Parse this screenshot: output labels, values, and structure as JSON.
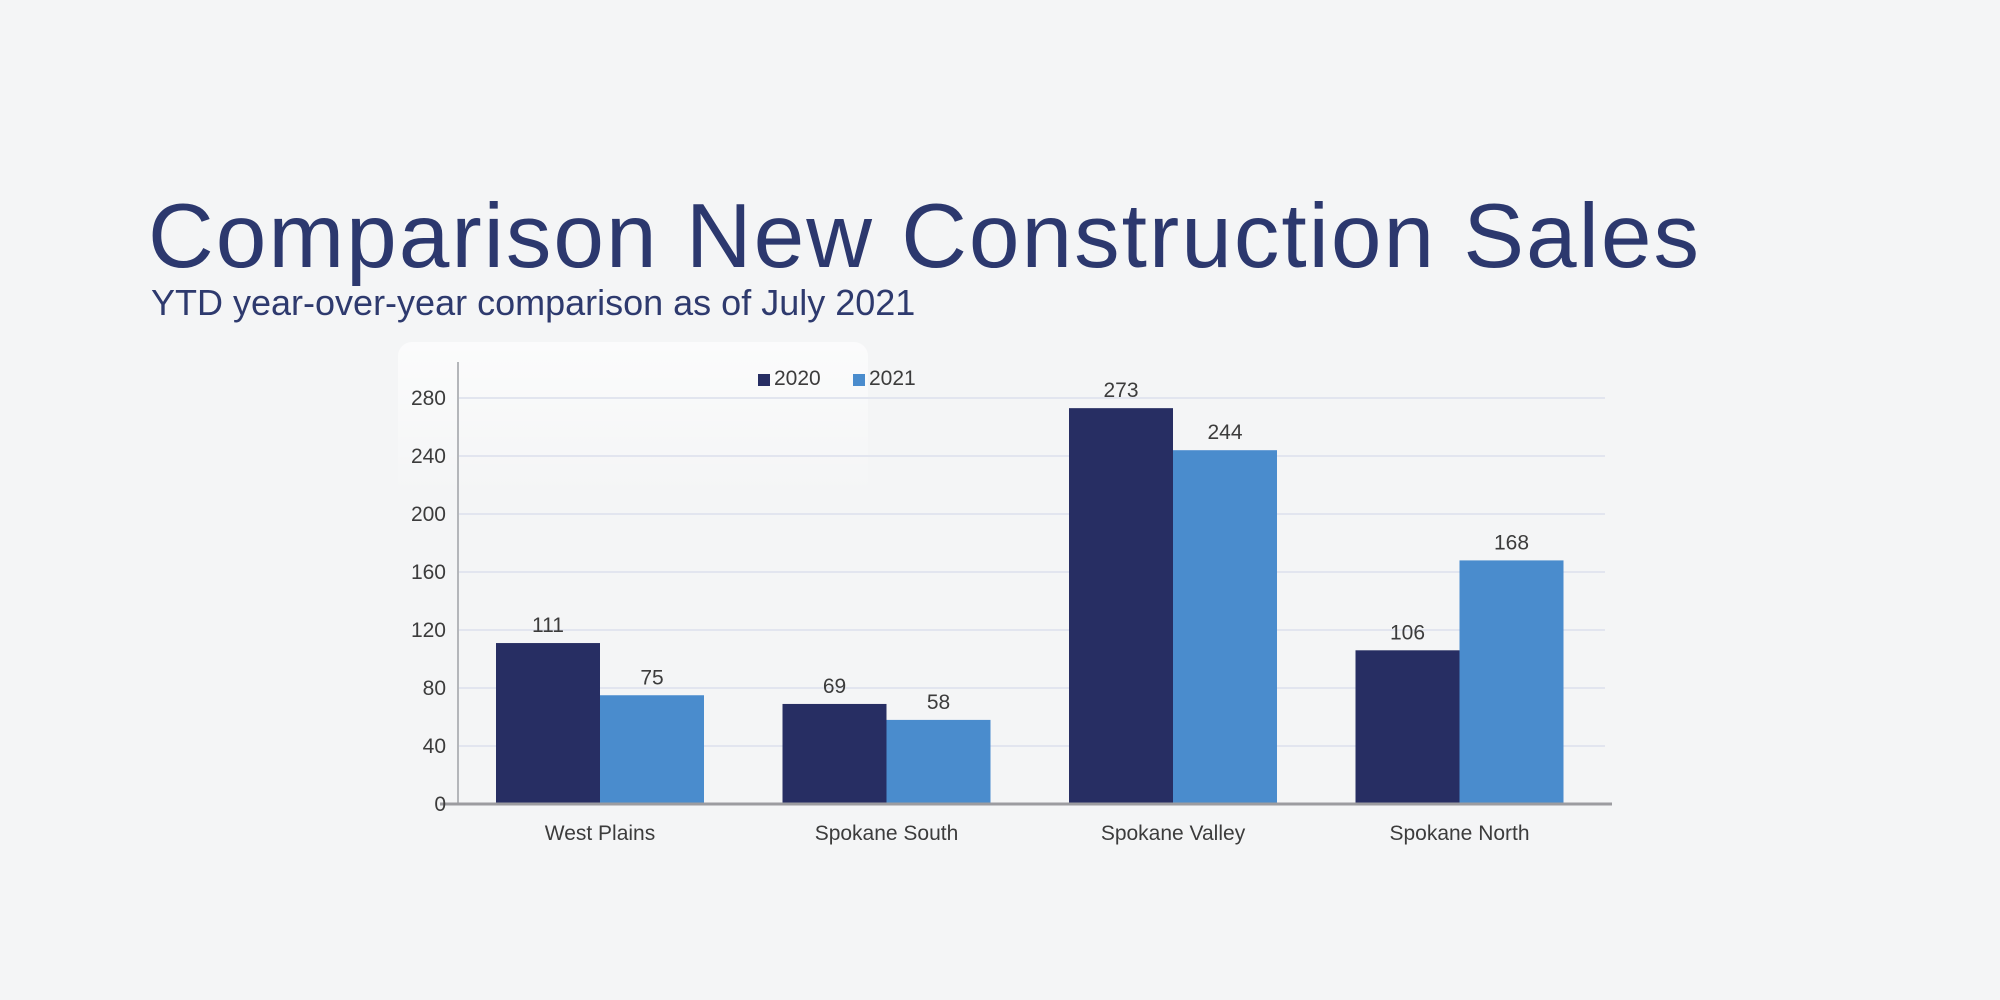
{
  "header": {
    "title": "Comparison New Construction Sales",
    "subtitle": "YTD year-over-year comparison as of July 2021"
  },
  "chart_data": {
    "type": "bar",
    "title": "",
    "xlabel": "",
    "ylabel": "",
    "categories": [
      "West Plains",
      "Spokane South",
      "Spokane Valley",
      "Spokane North"
    ],
    "series": [
      {
        "name": "2020",
        "color": "#272e63",
        "values": [
          111,
          69,
          273,
          106
        ]
      },
      {
        "name": "2021",
        "color": "#4a8ccd",
        "values": [
          75,
          58,
          244,
          168
        ]
      }
    ],
    "ylim": [
      0,
      280
    ],
    "yticks": [
      0,
      40,
      80,
      120,
      160,
      200,
      240,
      280
    ],
    "grid": true,
    "legend_position": "top-center",
    "value_labels_shown": true
  },
  "colors": {
    "background": "#f4f5f6",
    "title_text": "#2c386e",
    "subtitle_text": "#2e3a6e",
    "series_2020": "#272e63",
    "series_2021": "#4a8ccd",
    "gridline": "#e2e5ef",
    "x_axis_line": "#9c9ca0",
    "y_axis_line": "#b4b6ba",
    "chart_text": "#3c3c3c"
  }
}
